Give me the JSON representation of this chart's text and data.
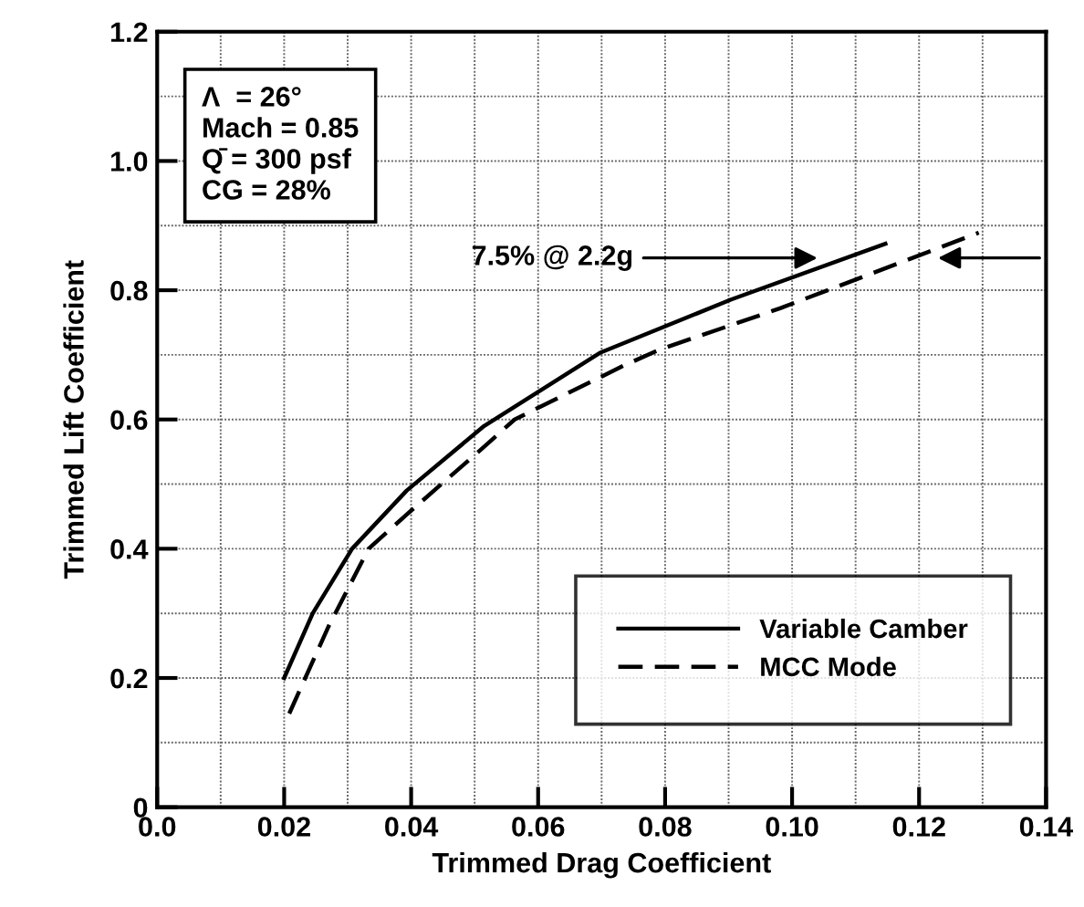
{
  "chart_data": {
    "type": "line",
    "xlabel": "Trimmed Drag Coefficient",
    "ylabel": "Trimmed Lift Coefficient",
    "xlim": [
      0,
      0.14
    ],
    "ylim": [
      0,
      1.2
    ],
    "xticks": [
      {
        "value": 0,
        "label": "0.0"
      },
      0.02,
      0.04,
      0.06,
      0.08,
      {
        "value": 0.1,
        "label": "0.10"
      },
      0.12,
      0.14
    ],
    "yticks": [
      0,
      0.2,
      0.4,
      0.6,
      0.8,
      {
        "value": 1.0,
        "label": "1.0"
      },
      1.2
    ],
    "grid": true,
    "legend": "bottom right",
    "series": [
      {
        "name": "Variable Camber",
        "color": "#000000",
        "line_style": "solid",
        "x": [
          0.02,
          0.0245,
          0.0307,
          0.0393,
          0.0515,
          0.0697,
          0.0905,
          0.1147
        ],
        "values": [
          0.2,
          0.3,
          0.4,
          0.49,
          0.59,
          0.703,
          0.786,
          0.872
        ]
      },
      {
        "name": "MCC Mode",
        "color": "#000000",
        "line_style": "dashed",
        "x": [
          0.0208,
          0.027,
          0.0333,
          0.0393,
          0.0506,
          0.0563,
          0.0734,
          0.0791,
          0.0981,
          0.1294
        ],
        "values": [
          0.145,
          0.28,
          0.4,
          0.453,
          0.55,
          0.6,
          0.683,
          0.708,
          0.772,
          0.889
        ]
      }
    ],
    "annotations": [
      {
        "text": "7.5% @ 2.2g",
        "x": 0.104,
        "y": 0.85
      },
      "Λ  = 26°\nMach = 0.85\nQ̄ = 300 psf\nCG = 28%"
    ]
  }
}
